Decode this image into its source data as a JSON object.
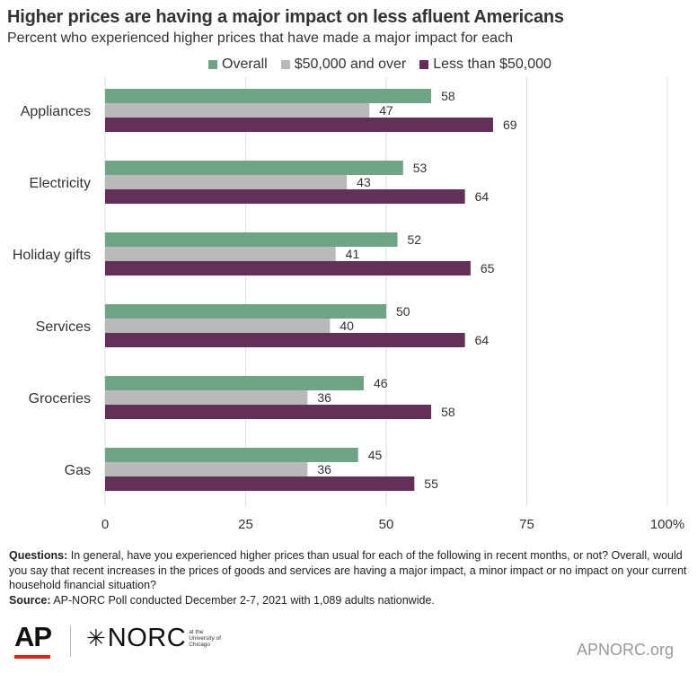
{
  "header": {
    "title": "Higher prices are having a major impact on less afluent Americans",
    "subtitle": "Percent who experienced higher prices that have made a major impact for each"
  },
  "colors": {
    "overall": "#6fa386",
    "over50k": "#b9b9b9",
    "under50k": "#643058",
    "grid": "#dedede"
  },
  "legend": [
    {
      "label": "Overall",
      "color": "#6fa386"
    },
    {
      "label": "$50,000 and over",
      "color": "#b9b9b9"
    },
    {
      "label": "Less than $50,000",
      "color": "#643058"
    }
  ],
  "chart_data": {
    "type": "bar",
    "orientation": "horizontal",
    "categories": [
      "Appliances",
      "Electricity",
      "Holiday gifts",
      "Services",
      "Groceries",
      "Gas"
    ],
    "series": [
      {
        "name": "Overall",
        "color": "#6fa386",
        "values": [
          58,
          53,
          52,
          50,
          46,
          45
        ]
      },
      {
        "name": "$50,000 and over",
        "color": "#b9b9b9",
        "values": [
          47,
          43,
          41,
          40,
          36,
          36
        ]
      },
      {
        "name": "Less than $50,000",
        "color": "#643058",
        "values": [
          69,
          64,
          65,
          64,
          58,
          55
        ]
      }
    ],
    "xlim": [
      0,
      100
    ],
    "xticks": [
      0,
      25,
      50,
      75,
      100
    ],
    "xtick_labels": [
      "0",
      "25",
      "50",
      "75",
      "100%"
    ],
    "grid": true,
    "legend_position": "top"
  },
  "notes": {
    "questions_label": "Questions:",
    "questions_text": " In general, have you experienced higher prices than usual for each of the following in recent months, or not? Overall, would you say that recent increases in the prices of goods and services are having a major impact, a minor impact or no impact on your current household financial situation?",
    "source_label": "Source:",
    "source_text": "  AP-NORC Poll conducted December 2-7, 2021 with 1,089 adults nationwide."
  },
  "footer": {
    "ap_logo": "AP",
    "norc_logo": "NORC",
    "norc_sub": "at the University of Chicago",
    "site": "APNORC.org"
  }
}
